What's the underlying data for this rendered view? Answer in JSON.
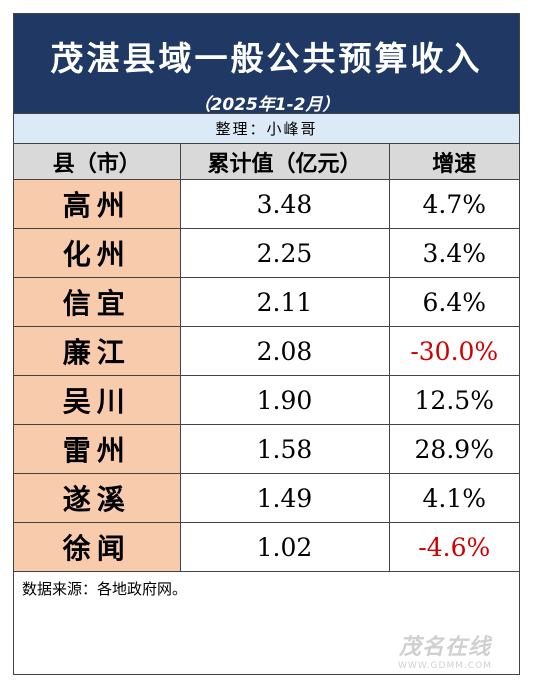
{
  "title": "茂湛县域一般公共预算收入",
  "subtitle": "（2025年1-2月）",
  "author": "整理：小峰哥",
  "columns": [
    "县（市）",
    "累计值（亿元）",
    "增速"
  ],
  "rows": [
    {
      "county": "高州",
      "value": "3.48",
      "growth": "4.7%"
    },
    {
      "county": "化州",
      "value": "2.25",
      "growth": "3.4%"
    },
    {
      "county": "信宜",
      "value": "2.11",
      "growth": "6.4%"
    },
    {
      "county": "廉江",
      "value": "2.08",
      "growth": "-30.0%"
    },
    {
      "county": "吴川",
      "value": "1.90",
      "growth": "12.5%"
    },
    {
      "county": "雷州",
      "value": "1.58",
      "growth": "28.9%"
    },
    {
      "county": "遂溪",
      "value": "1.49",
      "growth": "4.1%"
    },
    {
      "county": "徐闻",
      "value": "1.02",
      "growth": "-4.6%"
    }
  ],
  "source": "数据来源：各地政府网。",
  "watermark": {
    "logo": "茂名在线",
    "url": "WWW.GDMM.COM"
  },
  "colors": {
    "header_bg": "#1f3864",
    "author_bg": "#dce9f7",
    "county_bg": "#f8cbad",
    "negative": "#d00000"
  }
}
